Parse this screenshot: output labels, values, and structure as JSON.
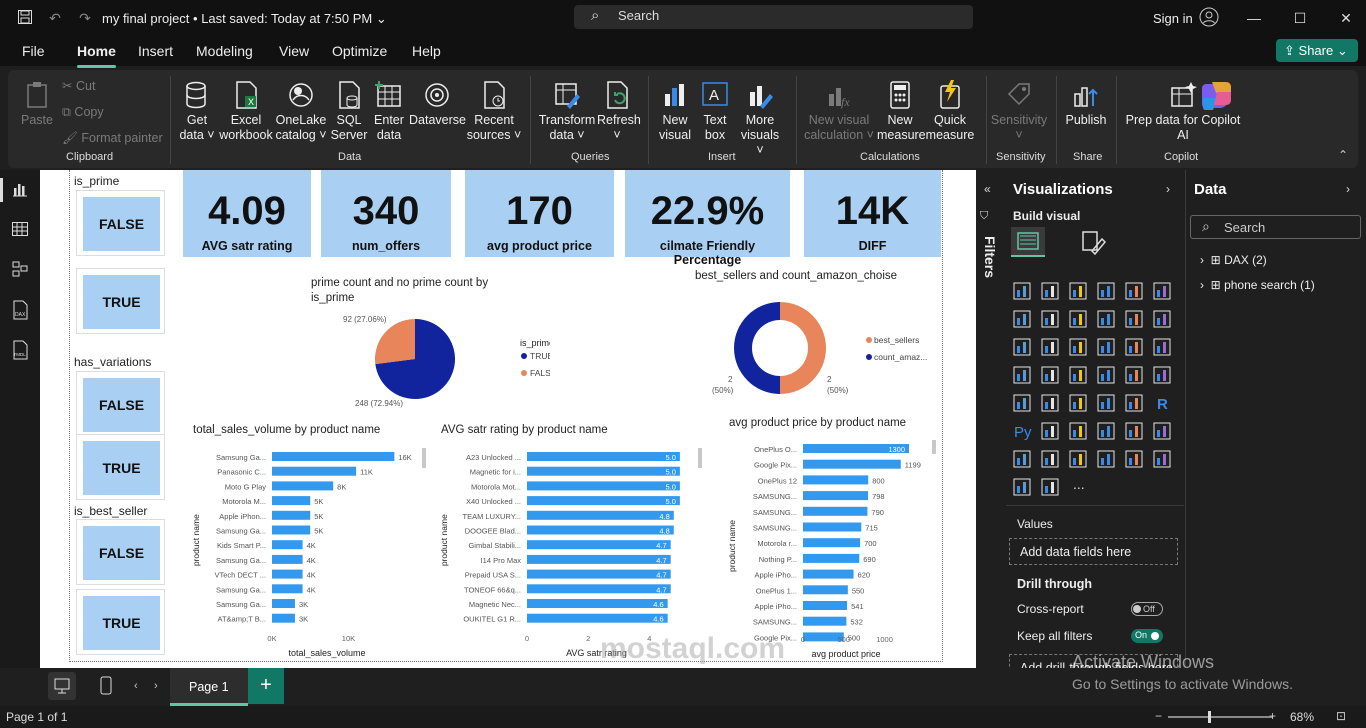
{
  "app": {
    "title": "my final project • Last saved: Today at 7:50 PM",
    "search_placeholder": "Search",
    "sign_in": "Sign in",
    "share": "Share"
  },
  "menu": [
    "File",
    "Home",
    "Insert",
    "Modeling",
    "View",
    "Optimize",
    "Help"
  ],
  "ribbon": {
    "paste": "Paste",
    "cut": "Cut",
    "copy": "Copy",
    "format_painter": "Format painter",
    "get_data": "Get data ˅",
    "excel": "Excel workbook",
    "onelake": "OneLake catalog ˅",
    "sql": "SQL Server",
    "enter_data": "Enter data",
    "dataverse": "Dataverse",
    "recent": "Recent sources ˅",
    "transform": "Transform data ˅",
    "refresh": "Refresh ˅",
    "new_visual": "New visual",
    "text_box": "Text box",
    "more_visuals": "More visuals ˅",
    "new_visual_calc": "New visual calculation ˅",
    "new_measure": "New measure",
    "quick_measure": "Quick measure",
    "sensitivity": "Sensitivity ˅",
    "publish": "Publish",
    "copilot": "Prep data for Copilot AI",
    "groups": {
      "clipboard": "Clipboard",
      "data": "Data",
      "queries": "Queries",
      "insert": "Insert",
      "calculations": "Calculations",
      "sensitivity": "Sensitivity",
      "share": "Share",
      "copilot": "Copilot"
    }
  },
  "slicers": {
    "is_prime": "is_prime",
    "has_variations": "has_variations",
    "is_best_seller": "is_best_seller",
    "false": "FALSE",
    "true": "TRUE"
  },
  "kpis": [
    {
      "value": "4.09",
      "label": "AVG satr rating"
    },
    {
      "value": "340",
      "label": "num_offers"
    },
    {
      "value": "170",
      "label": "avg product price"
    },
    {
      "value": "22.9%",
      "label": "cilmate Friendly Percentage"
    },
    {
      "value": "14K",
      "label": "DIFF"
    }
  ],
  "chart_data": [
    {
      "type": "pie",
      "title": "prime count and no prime count by is_prime",
      "legend_title": "is_prime",
      "slices": [
        {
          "name": "TRUE",
          "value": 248,
          "label": "248 (72.94%)",
          "color": "#12239e"
        },
        {
          "name": "FALSE",
          "value": 92,
          "label": "92 (27.06%)",
          "color": "#e8855b"
        }
      ]
    },
    {
      "type": "pie",
      "title": "best_sellers and count_amazon_choise",
      "slices": [
        {
          "name": "best_sellers",
          "value": 2,
          "label_v": "2",
          "label_p": "(50%)",
          "color": "#e8855b"
        },
        {
          "name": "count_amaz...",
          "value": 2,
          "label_v": "2",
          "label_p": "(50%)",
          "color": "#12239e"
        }
      ]
    },
    {
      "type": "bar",
      "title": "total_sales_volume by product name",
      "xlabel": "total_sales_volume",
      "ylabel": "product name",
      "xlim": [
        0,
        17000
      ],
      "xticks": [
        "0K",
        "10K"
      ],
      "categories": [
        "Samsung Ga...",
        "Panasonic C...",
        "Moto G Play",
        "Motorola M...",
        "Apple iPhon...",
        "Samsung Ga...",
        "Kids Smart P...",
        "Samsung Ga...",
        "VTech DECT ...",
        "Samsung Ga...",
        "Samsung Ga...",
        "AT&amp;T B..."
      ],
      "values": [
        16000,
        11000,
        8000,
        5000,
        5000,
        5000,
        4000,
        4000,
        4000,
        4000,
        3000,
        3000
      ],
      "labels": [
        "16K",
        "11K",
        "8K",
        "5K",
        "5K",
        "5K",
        "4K",
        "4K",
        "4K",
        "4K",
        "3K",
        "3K"
      ]
    },
    {
      "type": "bar",
      "title": "AVG satr rating by product name",
      "xlabel": "AVG satr rating",
      "ylabel": "product name",
      "xlim": [
        0,
        5.2
      ],
      "xticks": [
        "0",
        "2",
        "4"
      ],
      "categories": [
        "A23 Unlocked ...",
        "Magnetic for i...",
        "Motorola Mot...",
        "X40 Unlocked ...",
        "TEAM LUXURY...",
        "DOOGEE Blad...",
        "Gimbal Stabili...",
        "I14 Pro Max",
        "Prepaid USA S...",
        "TONEOF 66&q...",
        "Magnetic Nec...",
        "OUKITEL G1 R..."
      ],
      "values": [
        5.0,
        5.0,
        5.0,
        5.0,
        4.8,
        4.8,
        4.7,
        4.7,
        4.7,
        4.7,
        4.6,
        4.6
      ],
      "labels": [
        "5.0",
        "5.0",
        "5.0",
        "5.0",
        "4.8",
        "4.8",
        "4.7",
        "4.7",
        "4.7",
        "4.7",
        "4.6",
        "4.6"
      ]
    },
    {
      "type": "bar",
      "title": "avg product price by product name",
      "xlabel": "avg product price",
      "ylabel": "product name",
      "xlim": [
        0,
        1300
      ],
      "xticks": [
        "0",
        "500",
        "1000"
      ],
      "categories": [
        "OnePlus O...",
        "Google Pix...",
        "OnePlus 12",
        "SAMSUNG...",
        "SAMSUNG...",
        "SAMSUNG...",
        "Motorola r...",
        "Nothing P...",
        "Apple iPho...",
        "OnePlus 1...",
        "Apple iPho...",
        "SAMSUNG...",
        "Google Pix..."
      ],
      "values": [
        1300,
        1199,
        800,
        798,
        790,
        715,
        700,
        690,
        620,
        550,
        541,
        532,
        500
      ],
      "labels": [
        "1300",
        "1199",
        "800",
        "798",
        "790",
        "715",
        "700",
        "690",
        "620",
        "550",
        "541",
        "532",
        "500"
      ]
    }
  ],
  "filters": "Filters",
  "viz": {
    "title": "Visualizations",
    "build": "Build visual",
    "values": "Values",
    "add_fields": "Add data fields here",
    "drill": "Drill through",
    "cross": "Cross-report",
    "cross_state": "Off",
    "keep": "Keep all filters",
    "keep_state": "On",
    "add_drill": "Add drill-through fields here",
    "more": "..."
  },
  "data": {
    "title": "Data",
    "search": "Search",
    "items": [
      "DAX (2)",
      "phone search (1)"
    ]
  },
  "bottom": {
    "page": "Page 1",
    "page_count": "Page 1 of 1",
    "zoom": "68%"
  },
  "watermark": {
    "win1": "Activate Windows",
    "win2": "Go to Settings to activate Windows.",
    "brand": "mostaql.com"
  },
  "colors": {
    "accent": "#117865",
    "kpi": "#a9cff2",
    "bar": "#3399ef",
    "navy": "#12239e",
    "orange": "#e8855b"
  }
}
